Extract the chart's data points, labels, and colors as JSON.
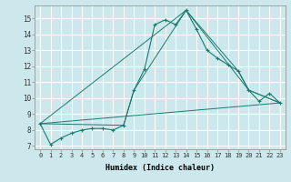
{
  "xlabel": "Humidex (Indice chaleur)",
  "ylabel": "",
  "bg_color": "#cce8ec",
  "grid_color": "#ffffff",
  "line_color": "#1a7a6e",
  "xlim": [
    -0.5,
    23.5
  ],
  "ylim": [
    6.8,
    15.8
  ],
  "yticks": [
    7,
    8,
    9,
    10,
    11,
    12,
    13,
    14,
    15
  ],
  "xticks": [
    0,
    1,
    2,
    3,
    4,
    5,
    6,
    7,
    8,
    9,
    10,
    11,
    12,
    13,
    14,
    15,
    16,
    17,
    18,
    19,
    20,
    21,
    22,
    23
  ],
  "series1_x": [
    0,
    1,
    2,
    3,
    4,
    5,
    6,
    7,
    8,
    9,
    10,
    11,
    12,
    13,
    14,
    15,
    16,
    17,
    18,
    19,
    20,
    21,
    22,
    23
  ],
  "series1_y": [
    8.4,
    7.1,
    7.5,
    7.8,
    8.0,
    8.1,
    8.1,
    8.0,
    8.3,
    10.5,
    11.8,
    14.6,
    14.9,
    14.6,
    15.5,
    14.3,
    13.0,
    12.5,
    12.1,
    11.7,
    10.5,
    9.8,
    10.3,
    9.7
  ],
  "series2_x": [
    0,
    8,
    9,
    14,
    19,
    20,
    23
  ],
  "series2_y": [
    8.4,
    8.3,
    10.5,
    15.5,
    11.7,
    10.5,
    9.7
  ],
  "series3_x": [
    0,
    23
  ],
  "series3_y": [
    8.4,
    9.7
  ],
  "series4_x": [
    0,
    14,
    20,
    23
  ],
  "series4_y": [
    8.4,
    15.5,
    10.5,
    9.7
  ]
}
